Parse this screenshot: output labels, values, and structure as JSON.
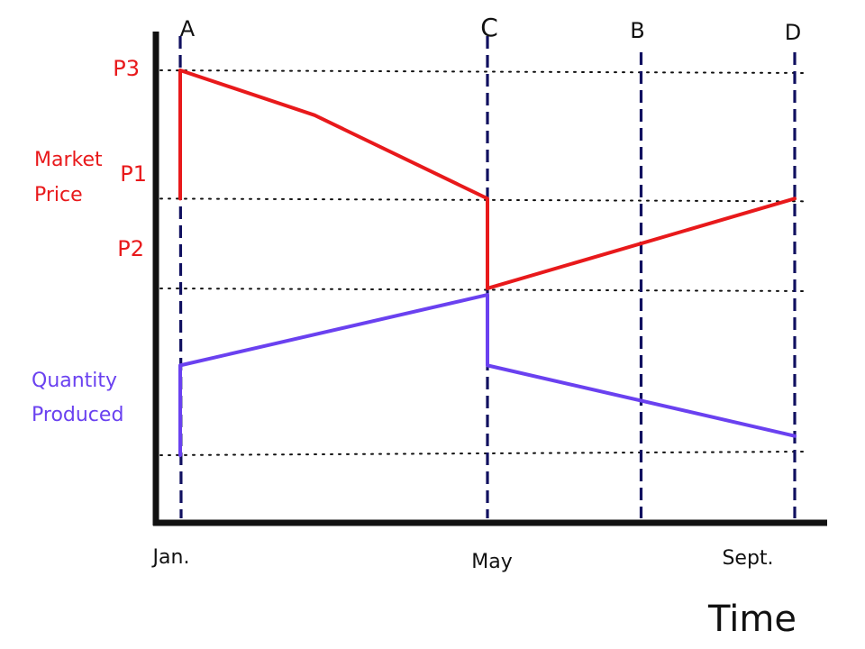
{
  "chart_data": {
    "type": "line",
    "title": "",
    "xlabel": "Time",
    "ylabel": "",
    "x_ticks": [
      "Jan.",
      "May",
      "Sept."
    ],
    "x_domain": [
      0,
      8
    ],
    "x_tick_positions": [
      0,
      4,
      8
    ],
    "y_reference_levels": [
      {
        "label": "P3",
        "value": 3.0
      },
      {
        "label": "P1",
        "value": 2.0
      },
      {
        "label": "P2",
        "value": 1.3
      },
      {
        "label": "",
        "value": 0.0
      }
    ],
    "markers": [
      {
        "label": "A",
        "x": 0.0
      },
      {
        "label": "C",
        "x": 4.0
      },
      {
        "label": "B",
        "x": 6.0
      },
      {
        "label": "D",
        "x": 8.0
      }
    ],
    "series": [
      {
        "name": "Market Price",
        "name_lines": [
          "Market",
          "Price"
        ],
        "color": "#e8191b",
        "points": [
          [
            0,
            2.0
          ],
          [
            0,
            3.0
          ],
          [
            1.75,
            2.65
          ],
          [
            4.0,
            2.0
          ],
          [
            4.0,
            1.3
          ],
          [
            8.0,
            2.0
          ]
        ]
      },
      {
        "name": "Quantity Produced",
        "name_lines": [
          "Quantity",
          "Produced"
        ],
        "color": "#6a41f0",
        "points": [
          [
            0,
            0.0
          ],
          [
            0,
            0.7
          ],
          [
            4.0,
            1.25
          ],
          [
            4.0,
            0.7
          ],
          [
            8.0,
            0.15
          ]
        ]
      }
    ],
    "grid": false,
    "colors": {
      "axis": "#111111",
      "marker": "#101060",
      "reference": "#111111"
    }
  }
}
